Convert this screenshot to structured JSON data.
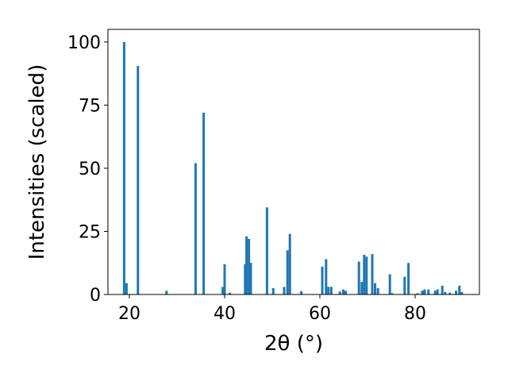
{
  "chart_data": {
    "type": "bar",
    "xlabel": "2θ (°)",
    "ylabel": "Intensities (scaled)",
    "color": "#1f77b4",
    "x": [
      18.9,
      19.4,
      21.8,
      27.8,
      33.9,
      35.6,
      39.6,
      40.0,
      41.1,
      44.3,
      44.6,
      45.1,
      45.5,
      48.9,
      50.2,
      52.5,
      53.2,
      53.7,
      56.1,
      60.5,
      61.3,
      61.8,
      62.4,
      64.2,
      64.9,
      65.4,
      68.2,
      68.8,
      69.3,
      69.8,
      71.0,
      71.6,
      72.2,
      74.7,
      75.2,
      77.8,
      78.6,
      80.5,
      81.5,
      82.0,
      82.8,
      84.2,
      84.7,
      85.7,
      86.3,
      87.3,
      88.6,
      89.3,
      89.8
    ],
    "values": [
      100,
      4.5,
      90.5,
      1.5,
      52,
      72,
      3,
      12,
      0.7,
      12,
      23,
      22,
      12.5,
      34.5,
      2.5,
      3,
      17.5,
      24,
      1.3,
      11,
      14,
      3,
      3,
      1.2,
      2,
      1.5,
      13,
      5,
      15.7,
      15,
      16,
      4.5,
      2.5,
      8,
      0.5,
      7,
      12.5,
      0.5,
      1.5,
      2,
      2,
      1.5,
      2,
      3.5,
      1,
      0.7,
      1.5,
      3.5,
      1
    ],
    "xlim": [
      15.5,
      93.5
    ],
    "xticks": [
      20,
      40,
      60,
      80
    ],
    "ylim": [
      0,
      105
    ],
    "yticks": [
      0,
      25,
      50,
      75,
      100
    ]
  }
}
